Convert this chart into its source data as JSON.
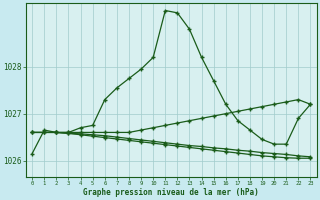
{
  "background_color": "#c8eaf0",
  "plot_bg_color": "#d8f0f0",
  "grid_color": "#a0cccc",
  "line_color": "#1a5c1a",
  "xlabel": "Graphe pression niveau de la mer (hPa)",
  "ylim": [
    1025.65,
    1029.35
  ],
  "xlim": [
    -0.5,
    23.5
  ],
  "yticks": [
    1026,
    1027,
    1028
  ],
  "xticks": [
    0,
    1,
    2,
    3,
    4,
    5,
    6,
    7,
    8,
    9,
    10,
    11,
    12,
    13,
    14,
    15,
    16,
    17,
    18,
    19,
    20,
    21,
    22,
    23
  ],
  "series1": [
    1026.15,
    1026.65,
    1026.6,
    1026.6,
    1026.7,
    1026.75,
    1027.3,
    1027.55,
    1027.75,
    1027.95,
    1028.2,
    1029.2,
    1029.15,
    1028.8,
    1028.2,
    1027.7,
    1027.2,
    1026.85,
    1026.65,
    1026.45,
    1026.35,
    1026.35,
    1026.9,
    1027.2
  ],
  "series2": [
    1026.6,
    1026.6,
    1026.6,
    1026.6,
    1026.6,
    1026.6,
    1026.6,
    1026.6,
    1026.6,
    1026.65,
    1026.7,
    1026.75,
    1026.8,
    1026.85,
    1026.9,
    1026.95,
    1027.0,
    1027.05,
    1027.1,
    1027.15,
    1027.2,
    1027.25,
    1027.3,
    1027.2
  ],
  "series3": [
    1026.6,
    1026.6,
    1026.6,
    1026.58,
    1026.57,
    1026.55,
    1026.53,
    1026.5,
    1026.47,
    1026.44,
    1026.41,
    1026.38,
    1026.35,
    1026.32,
    1026.3,
    1026.27,
    1026.25,
    1026.22,
    1026.2,
    1026.17,
    1026.15,
    1026.13,
    1026.1,
    1026.08
  ],
  "series4": [
    1026.6,
    1026.6,
    1026.6,
    1026.58,
    1026.55,
    1026.52,
    1026.49,
    1026.46,
    1026.43,
    1026.4,
    1026.37,
    1026.34,
    1026.31,
    1026.28,
    1026.25,
    1026.22,
    1026.19,
    1026.16,
    1026.13,
    1026.1,
    1026.08,
    1026.06,
    1026.05,
    1026.05
  ]
}
